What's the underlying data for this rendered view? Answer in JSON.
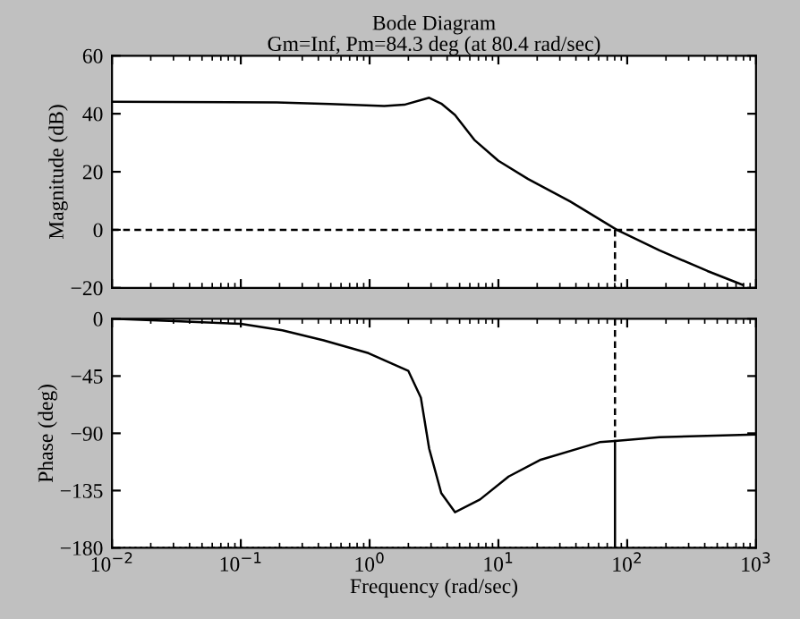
{
  "chart_data": [
    {
      "type": "line",
      "title": "Bode Diagram",
      "subtitle": "Gm=Inf, Pm=84.3 deg (at 80.4 rad/sec)",
      "ylabel": "Magnitude (dB)",
      "log": "x",
      "xlim": [
        0.01,
        1000
      ],
      "xticks": [
        0.01,
        0.1,
        1,
        10,
        100,
        1000
      ],
      "ylim": [
        -20,
        60
      ],
      "yticks": [
        -20,
        0,
        20,
        40,
        60
      ],
      "tick_labels": "y",
      "grid": false,
      "legend": false,
      "series": [
        {
          "color": "#000000",
          "line_style": "solid",
          "x": [
            0.01,
            0.19,
            0.49,
            1.3,
            1.86,
            2.9,
            3.6,
            4.6,
            6.5,
            10,
            17,
            36,
            83,
            178,
            420,
            790
          ],
          "values": [
            44.1,
            43.9,
            43.4,
            42.7,
            43.1,
            45.5,
            43.5,
            39.6,
            31,
            23.8,
            17.5,
            9.8,
            0,
            -7.1,
            -14.2,
            -19
          ]
        },
        {
          "color": "#000000",
          "line_style": "dashed",
          "x": [
            80.4,
            80.4
          ],
          "values": [
            0,
            -20
          ]
        }
      ],
      "ref_lines": [
        {
          "axis": "y",
          "value": 0,
          "color": "#000000",
          "line_style": "dashed"
        }
      ]
    },
    {
      "type": "line",
      "xlabel": "Frequency (rad/sec)",
      "ylabel": "Phase (deg)",
      "log": "x",
      "xlim": [
        0.01,
        1000
      ],
      "xticks": [
        {
          "value": 0.01,
          "label": "10$^{−2}$"
        },
        {
          "value": 0.1,
          "label": "10$^{−1}$"
        },
        {
          "value": 1,
          "label": "10$^{0}$"
        },
        {
          "value": 10,
          "label": "10$^{1}$"
        },
        {
          "value": 100,
          "label": "10$^{2}$"
        },
        {
          "value": 1000,
          "label": "10$^{3}$"
        }
      ],
      "ylim": [
        -180,
        0
      ],
      "yticks": [
        -180,
        -135,
        -90,
        -45,
        0
      ],
      "grid": false,
      "legend": false,
      "series": [
        {
          "color": "#000000",
          "line_style": "solid",
          "x": [
            0.01,
            0.034,
            0.1,
            0.21,
            0.44,
            0.98,
            2.0,
            2.5,
            2.9,
            3.6,
            4.6,
            7.2,
            12,
            21,
            61,
            80.4,
            178,
            1000
          ],
          "values": [
            0,
            -2,
            -4,
            -9,
            -17,
            -27,
            -41,
            -62,
            -102,
            -137,
            -152,
            -142,
            -124,
            -111,
            -97,
            -96,
            -93,
            -91
          ]
        },
        {
          "color": "#000000",
          "line_style": "dashed",
          "x": [
            80.4,
            80.4
          ],
          "values": [
            0,
            -96
          ]
        },
        {
          "color": "#000000",
          "line_style": "solid",
          "x": [
            80.4,
            80.4
          ],
          "values": [
            -96,
            -180
          ]
        }
      ],
      "ref_lines": [
        {
          "axis": "y",
          "value": -180,
          "color": "#000000",
          "line_style": "dotted"
        }
      ]
    }
  ]
}
